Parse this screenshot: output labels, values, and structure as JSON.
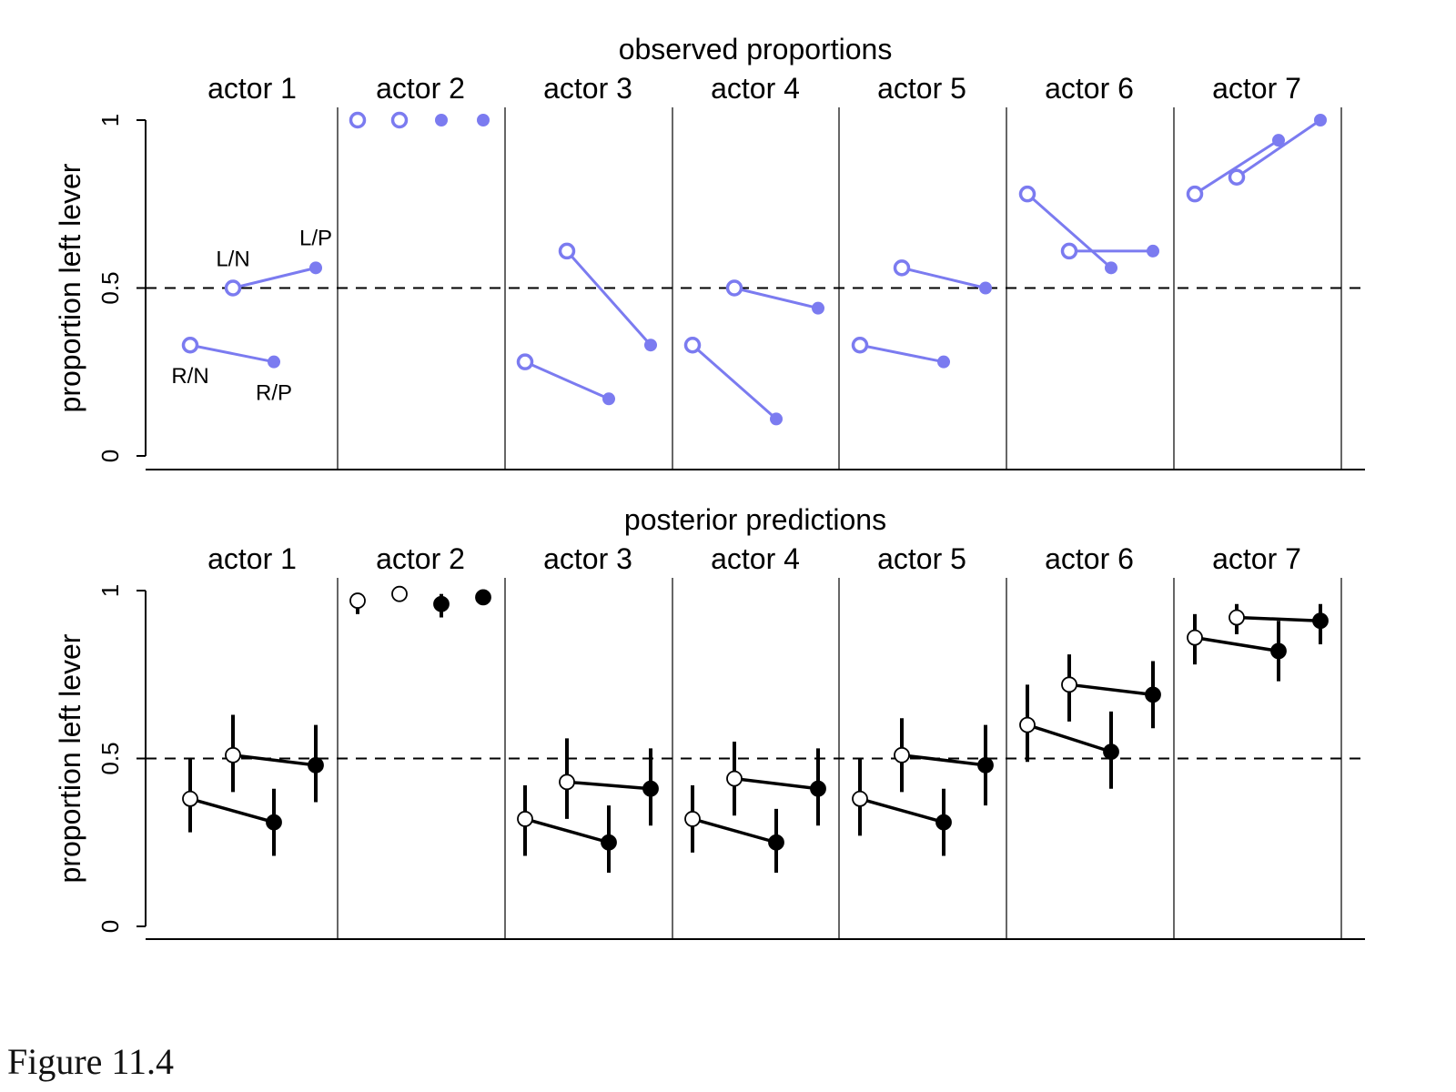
{
  "figure_caption": "Figure 11.4",
  "colors": {
    "observed": "#7b7bf0",
    "predicted": "#000000",
    "open_fill": "#ffffff",
    "axis": "#000000"
  },
  "chart_data": [
    {
      "type": "scatter",
      "title": "observed proportions",
      "ylabel": "proportion left lever",
      "ylim": [
        0,
        1
      ],
      "yticks": [
        "0",
        "0.5",
        "1"
      ],
      "reference_line": 0.5,
      "panels": [
        "actor 1",
        "actor 2",
        "actor 3",
        "actor 4",
        "actor 5",
        "actor 6",
        "actor 7"
      ],
      "point_labels": [
        "R/N",
        "L/N",
        "R/P",
        "L/P"
      ],
      "point_order": [
        "R/N",
        "L/N",
        "R/P",
        "L/P"
      ],
      "values": [
        [
          0.33,
          0.5,
          0.28,
          0.56
        ],
        [
          1.0,
          1.0,
          1.0,
          1.0
        ],
        [
          0.28,
          0.61,
          0.17,
          0.33
        ],
        [
          0.33,
          0.5,
          0.11,
          0.44
        ],
        [
          0.33,
          0.56,
          0.28,
          0.5
        ],
        [
          0.78,
          0.61,
          0.56,
          0.61
        ],
        [
          0.78,
          0.83,
          0.94,
          1.0
        ]
      ]
    },
    {
      "type": "scatter",
      "title": "posterior predictions",
      "ylabel": "proportion left lever",
      "ylim": [
        0,
        1
      ],
      "yticks": [
        "0",
        "0.5",
        "1"
      ],
      "reference_line": 0.5,
      "panels": [
        "actor 1",
        "actor 2",
        "actor 3",
        "actor 4",
        "actor 5",
        "actor 6",
        "actor 7"
      ],
      "point_order": [
        "R/N",
        "L/N",
        "R/P",
        "L/P"
      ],
      "values": [
        [
          0.38,
          0.51,
          0.31,
          0.48
        ],
        [
          0.97,
          0.99,
          0.96,
          0.98
        ],
        [
          0.32,
          0.43,
          0.25,
          0.41
        ],
        [
          0.32,
          0.44,
          0.25,
          0.41
        ],
        [
          0.38,
          0.51,
          0.31,
          0.48
        ],
        [
          0.6,
          0.72,
          0.52,
          0.69
        ],
        [
          0.86,
          0.92,
          0.82,
          0.91
        ]
      ],
      "intervals": [
        [
          [
            0.28,
            0.5
          ],
          [
            0.4,
            0.63
          ],
          [
            0.21,
            0.41
          ],
          [
            0.37,
            0.6
          ]
        ],
        [
          [
            0.93,
            0.99
          ],
          [
            0.97,
            1.0
          ],
          [
            0.92,
            0.99
          ],
          [
            0.97,
            0.99
          ]
        ],
        [
          [
            0.21,
            0.42
          ],
          [
            0.32,
            0.56
          ],
          [
            0.16,
            0.36
          ],
          [
            0.3,
            0.53
          ]
        ],
        [
          [
            0.22,
            0.42
          ],
          [
            0.33,
            0.55
          ],
          [
            0.16,
            0.35
          ],
          [
            0.3,
            0.53
          ]
        ],
        [
          [
            0.27,
            0.5
          ],
          [
            0.4,
            0.62
          ],
          [
            0.21,
            0.41
          ],
          [
            0.36,
            0.6
          ]
        ],
        [
          [
            0.49,
            0.72
          ],
          [
            0.61,
            0.81
          ],
          [
            0.41,
            0.64
          ],
          [
            0.59,
            0.79
          ]
        ],
        [
          [
            0.78,
            0.93
          ],
          [
            0.87,
            0.96
          ],
          [
            0.73,
            0.91
          ],
          [
            0.84,
            0.96
          ]
        ]
      ]
    }
  ]
}
